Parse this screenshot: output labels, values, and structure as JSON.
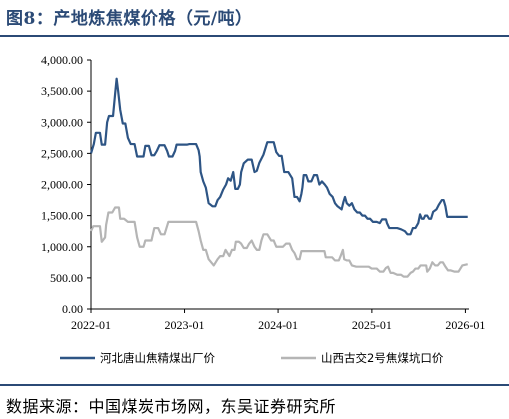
{
  "header": {
    "title": "图8：产地炼焦煤价格（元/吨）"
  },
  "footer": {
    "source": "数据来源：中国煤炭市场网，东吴证券研究所"
  },
  "colors": {
    "hebei": "#2e5585",
    "shanxi": "#b5b5b5",
    "accent": "#2b4a76"
  },
  "chart_data": {
    "type": "line",
    "title": "",
    "xlabel": "",
    "ylabel": "",
    "x_domain": [
      "2022-01-01",
      "2026-01-15"
    ],
    "ylim": [
      0,
      4000
    ],
    "x_ticks": [
      {
        "date": "2022-01-01",
        "label": "2022-01"
      },
      {
        "date": "2023-01-01",
        "label": "2023-01"
      },
      {
        "date": "2024-01-01",
        "label": "2024-01"
      },
      {
        "date": "2025-01-01",
        "label": "2025-01"
      },
      {
        "date": "2026-01-01",
        "label": "2026-01"
      }
    ],
    "y_ticks": [
      {
        "value": 0,
        "label": "0.00"
      },
      {
        "value": 500,
        "label": "500.00"
      },
      {
        "value": 1000,
        "label": "1,000.00"
      },
      {
        "value": 1500,
        "label": "1,500.00"
      },
      {
        "value": 2000,
        "label": "2,000.00"
      },
      {
        "value": 2500,
        "label": "2,500.00"
      },
      {
        "value": 3000,
        "label": "3,000.00"
      },
      {
        "value": 3500,
        "label": "3,500.00"
      },
      {
        "value": 4000,
        "label": "4,000.00"
      }
    ],
    "grid": false,
    "legend_position": "bottom",
    "series": [
      {
        "name": "河北唐山焦精煤出厂价",
        "color": "#2e5585",
        "points": [
          [
            "2022-01-01",
            2500
          ],
          [
            "2022-01-12",
            2650
          ],
          [
            "2022-01-20",
            2830
          ],
          [
            "2022-02-05",
            2830
          ],
          [
            "2022-02-12",
            2640
          ],
          [
            "2022-02-25",
            2640
          ],
          [
            "2022-03-05",
            3000
          ],
          [
            "2022-03-12",
            3100
          ],
          [
            "2022-03-28",
            3100
          ],
          [
            "2022-04-05",
            3450
          ],
          [
            "2022-04-11",
            3700
          ],
          [
            "2022-04-17",
            3500
          ],
          [
            "2022-04-25",
            3200
          ],
          [
            "2022-05-05",
            2980
          ],
          [
            "2022-05-15",
            2980
          ],
          [
            "2022-05-25",
            2750
          ],
          [
            "2022-06-05",
            2650
          ],
          [
            "2022-06-20",
            2650
          ],
          [
            "2022-06-30",
            2450
          ],
          [
            "2022-07-10",
            2450
          ],
          [
            "2022-07-25",
            2450
          ],
          [
            "2022-08-01",
            2620
          ],
          [
            "2022-08-15",
            2620
          ],
          [
            "2022-08-25",
            2470
          ],
          [
            "2022-09-05",
            2470
          ],
          [
            "2022-09-15",
            2540
          ],
          [
            "2022-09-25",
            2630
          ],
          [
            "2022-10-15",
            2630
          ],
          [
            "2022-10-25",
            2540
          ],
          [
            "2022-11-01",
            2450
          ],
          [
            "2022-11-15",
            2450
          ],
          [
            "2022-11-25",
            2540
          ],
          [
            "2022-12-01",
            2640
          ],
          [
            "2022-12-20",
            2640
          ],
          [
            "2023-01-10",
            2640
          ],
          [
            "2023-01-20",
            2650
          ],
          [
            "2023-02-15",
            2650
          ],
          [
            "2023-02-25",
            2550
          ],
          [
            "2023-03-01",
            2450
          ],
          [
            "2023-03-05",
            2200
          ],
          [
            "2023-03-15",
            2050
          ],
          [
            "2023-03-25",
            1950
          ],
          [
            "2023-04-05",
            1700
          ],
          [
            "2023-04-20",
            1650
          ],
          [
            "2023-05-01",
            1650
          ],
          [
            "2023-05-10",
            1750
          ],
          [
            "2023-05-20",
            1800
          ],
          [
            "2023-06-01",
            1920
          ],
          [
            "2023-06-12",
            2000
          ],
          [
            "2023-06-20",
            2100
          ],
          [
            "2023-06-30",
            2060
          ],
          [
            "2023-07-10",
            2200
          ],
          [
            "2023-07-18",
            1930
          ],
          [
            "2023-07-28",
            1930
          ],
          [
            "2023-08-05",
            2000
          ],
          [
            "2023-08-10",
            2200
          ],
          [
            "2023-08-20",
            2340
          ],
          [
            "2023-09-05",
            2400
          ],
          [
            "2023-09-20",
            2400
          ],
          [
            "2023-10-01",
            2200
          ],
          [
            "2023-10-10",
            2220
          ],
          [
            "2023-10-20",
            2350
          ],
          [
            "2023-11-05",
            2480
          ],
          [
            "2023-11-20",
            2680
          ],
          [
            "2023-12-15",
            2680
          ],
          [
            "2023-12-25",
            2520
          ],
          [
            "2024-01-05",
            2460
          ],
          [
            "2024-01-15",
            2460
          ],
          [
            "2024-01-25",
            2200
          ],
          [
            "2024-02-10",
            2200
          ],
          [
            "2024-02-25",
            2100
          ],
          [
            "2024-03-05",
            1800
          ],
          [
            "2024-03-15",
            1800
          ],
          [
            "2024-03-25",
            1730
          ],
          [
            "2024-04-01",
            1850
          ],
          [
            "2024-04-05",
            1950
          ],
          [
            "2024-04-10",
            2150
          ],
          [
            "2024-04-20",
            2150
          ],
          [
            "2024-04-28",
            2050
          ],
          [
            "2024-05-10",
            2050
          ],
          [
            "2024-05-20",
            2150
          ],
          [
            "2024-06-01",
            2150
          ],
          [
            "2024-06-10",
            2000
          ],
          [
            "2024-06-20",
            2050
          ],
          [
            "2024-07-01",
            2000
          ],
          [
            "2024-07-10",
            1950
          ],
          [
            "2024-07-20",
            1850
          ],
          [
            "2024-08-01",
            1800
          ],
          [
            "2024-08-10",
            1700
          ],
          [
            "2024-08-20",
            1650
          ],
          [
            "2024-09-05",
            1600
          ],
          [
            "2024-09-12",
            1720
          ],
          [
            "2024-09-18",
            1800
          ],
          [
            "2024-09-25",
            1700
          ],
          [
            "2024-10-05",
            1660
          ],
          [
            "2024-10-15",
            1700
          ],
          [
            "2024-10-25",
            1600
          ],
          [
            "2024-11-05",
            1550
          ],
          [
            "2024-11-15",
            1550
          ],
          [
            "2024-11-25",
            1500
          ],
          [
            "2024-12-05",
            1500
          ],
          [
            "2024-12-15",
            1450
          ],
          [
            "2024-12-25",
            1450
          ],
          [
            "2025-01-05",
            1400
          ],
          [
            "2025-01-20",
            1400
          ],
          [
            "2025-02-01",
            1380
          ],
          [
            "2025-02-10",
            1440
          ],
          [
            "2025-02-25",
            1440
          ],
          [
            "2025-03-01",
            1380
          ],
          [
            "2025-03-10",
            1300
          ],
          [
            "2025-03-25",
            1300
          ],
          [
            "2025-04-10",
            1300
          ],
          [
            "2025-04-25",
            1280
          ],
          [
            "2025-05-10",
            1250
          ],
          [
            "2025-05-20",
            1200
          ],
          [
            "2025-06-01",
            1200
          ],
          [
            "2025-06-10",
            1300
          ],
          [
            "2025-06-20",
            1300
          ],
          [
            "2025-07-01",
            1380
          ],
          [
            "2025-07-08",
            1520
          ],
          [
            "2025-07-15",
            1450
          ],
          [
            "2025-07-22",
            1450
          ],
          [
            "2025-07-28",
            1500
          ],
          [
            "2025-08-05",
            1500
          ],
          [
            "2025-08-12",
            1450
          ],
          [
            "2025-08-20",
            1450
          ],
          [
            "2025-08-28",
            1560
          ],
          [
            "2025-09-10",
            1600
          ],
          [
            "2025-09-20",
            1680
          ],
          [
            "2025-10-01",
            1750
          ],
          [
            "2025-10-08",
            1750
          ],
          [
            "2025-10-15",
            1650
          ],
          [
            "2025-10-22",
            1480
          ],
          [
            "2025-11-01",
            1480
          ],
          [
            "2025-11-20",
            1480
          ],
          [
            "2025-12-10",
            1480
          ],
          [
            "2026-01-10",
            1480
          ]
        ]
      },
      {
        "name": "山西古交2号焦煤坑口价",
        "color": "#b5b5b5",
        "points": [
          [
            "2022-01-01",
            1250
          ],
          [
            "2022-01-10",
            1330
          ],
          [
            "2022-02-05",
            1330
          ],
          [
            "2022-02-12",
            1080
          ],
          [
            "2022-02-25",
            1150
          ],
          [
            "2022-03-01",
            1350
          ],
          [
            "2022-03-10",
            1550
          ],
          [
            "2022-03-25",
            1550
          ],
          [
            "2022-04-05",
            1630
          ],
          [
            "2022-04-20",
            1630
          ],
          [
            "2022-04-25",
            1450
          ],
          [
            "2022-05-10",
            1450
          ],
          [
            "2022-05-25",
            1400
          ],
          [
            "2022-06-05",
            1400
          ],
          [
            "2022-06-20",
            1400
          ],
          [
            "2022-06-30",
            1150
          ],
          [
            "2022-07-10",
            1000
          ],
          [
            "2022-07-25",
            1000
          ],
          [
            "2022-08-01",
            1100
          ],
          [
            "2022-08-15",
            1100
          ],
          [
            "2022-08-25",
            1100
          ],
          [
            "2022-09-05",
            1300
          ],
          [
            "2022-09-20",
            1300
          ],
          [
            "2022-10-01",
            1200
          ],
          [
            "2022-10-15",
            1200
          ],
          [
            "2022-10-30",
            1400
          ],
          [
            "2022-11-15",
            1400
          ],
          [
            "2022-12-01",
            1400
          ],
          [
            "2022-12-31",
            1400
          ],
          [
            "2023-01-20",
            1400
          ],
          [
            "2023-02-15",
            1400
          ],
          [
            "2023-02-25",
            1250
          ],
          [
            "2023-03-05",
            1100
          ],
          [
            "2023-03-15",
            950
          ],
          [
            "2023-03-25",
            950
          ],
          [
            "2023-04-05",
            800
          ],
          [
            "2023-04-15",
            750
          ],
          [
            "2023-04-25",
            700
          ],
          [
            "2023-05-10",
            800
          ],
          [
            "2023-05-20",
            850
          ],
          [
            "2023-06-01",
            850
          ],
          [
            "2023-06-10",
            950
          ],
          [
            "2023-06-25",
            850
          ],
          [
            "2023-07-05",
            950
          ],
          [
            "2023-07-15",
            950
          ],
          [
            "2023-07-20",
            1080
          ],
          [
            "2023-08-01",
            1080
          ],
          [
            "2023-08-10",
            1050
          ],
          [
            "2023-08-20",
            980
          ],
          [
            "2023-09-01",
            980
          ],
          [
            "2023-09-10",
            1050
          ],
          [
            "2023-09-20",
            1100
          ],
          [
            "2023-10-01",
            1000
          ],
          [
            "2023-10-10",
            950
          ],
          [
            "2023-10-20",
            950
          ],
          [
            "2023-10-28",
            1100
          ],
          [
            "2023-11-05",
            1200
          ],
          [
            "2023-11-20",
            1200
          ],
          [
            "2023-12-05",
            1100
          ],
          [
            "2023-12-15",
            1100
          ],
          [
            "2023-12-25",
            1000
          ],
          [
            "2024-01-05",
            1000
          ],
          [
            "2024-01-20",
            1000
          ],
          [
            "2024-02-01",
            1050
          ],
          [
            "2024-02-15",
            1050
          ],
          [
            "2024-02-25",
            950
          ],
          [
            "2024-03-05",
            900
          ],
          [
            "2024-03-15",
            800
          ],
          [
            "2024-03-25",
            800
          ],
          [
            "2024-04-01",
            930
          ],
          [
            "2024-04-15",
            930
          ],
          [
            "2024-05-01",
            930
          ],
          [
            "2024-05-15",
            930
          ],
          [
            "2024-06-01",
            930
          ],
          [
            "2024-06-15",
            930
          ],
          [
            "2024-06-30",
            930
          ],
          [
            "2024-07-05",
            830
          ],
          [
            "2024-07-20",
            830
          ],
          [
            "2024-07-30",
            830
          ],
          [
            "2024-08-10",
            780
          ],
          [
            "2024-08-25",
            780
          ],
          [
            "2024-09-01",
            850
          ],
          [
            "2024-09-10",
            950
          ],
          [
            "2024-09-15",
            800
          ],
          [
            "2024-09-25",
            780
          ],
          [
            "2024-10-05",
            780
          ],
          [
            "2024-10-15",
            700
          ],
          [
            "2024-11-01",
            680
          ],
          [
            "2024-11-15",
            680
          ],
          [
            "2024-12-01",
            680
          ],
          [
            "2024-12-20",
            680
          ],
          [
            "2024-12-31",
            650
          ],
          [
            "2025-01-10",
            650
          ],
          [
            "2025-01-20",
            650
          ],
          [
            "2025-02-01",
            600
          ],
          [
            "2025-02-15",
            600
          ],
          [
            "2025-02-25",
            660
          ],
          [
            "2025-03-05",
            680
          ],
          [
            "2025-03-15",
            580
          ],
          [
            "2025-03-25",
            580
          ],
          [
            "2025-04-10",
            550
          ],
          [
            "2025-04-25",
            550
          ],
          [
            "2025-05-05",
            520
          ],
          [
            "2025-05-20",
            520
          ],
          [
            "2025-06-01",
            580
          ],
          [
            "2025-06-10",
            600
          ],
          [
            "2025-06-20",
            650
          ],
          [
            "2025-07-01",
            650
          ],
          [
            "2025-07-10",
            700
          ],
          [
            "2025-07-20",
            700
          ],
          [
            "2025-08-01",
            700
          ],
          [
            "2025-08-05",
            600
          ],
          [
            "2025-08-15",
            650
          ],
          [
            "2025-08-25",
            750
          ],
          [
            "2025-09-05",
            700
          ],
          [
            "2025-09-15",
            700
          ],
          [
            "2025-09-25",
            750
          ],
          [
            "2025-10-05",
            750
          ],
          [
            "2025-10-15",
            680
          ],
          [
            "2025-10-25",
            620
          ],
          [
            "2025-11-05",
            620
          ],
          [
            "2025-11-20",
            600
          ],
          [
            "2025-12-05",
            600
          ],
          [
            "2025-12-20",
            700
          ],
          [
            "2026-01-10",
            720
          ]
        ]
      }
    ]
  }
}
